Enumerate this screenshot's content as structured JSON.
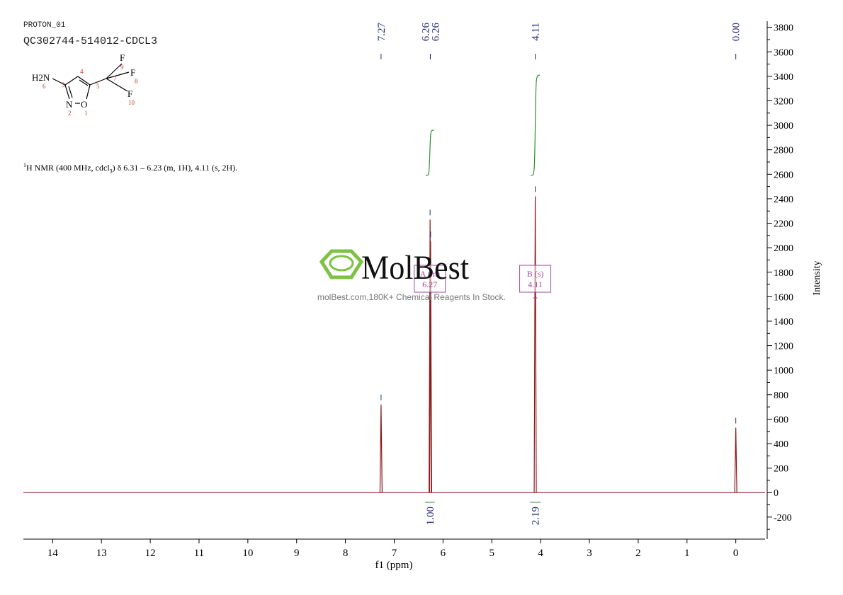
{
  "header": {
    "experiment": "PROTON_01",
    "sample": "QC302744-514012-CDCL3"
  },
  "molecule": {
    "atoms": [
      {
        "symbol": "H2N",
        "number": "6"
      },
      {
        "symbol": "",
        "number": "3"
      },
      {
        "symbol": "",
        "number": "4"
      },
      {
        "symbol": "",
        "number": "5"
      },
      {
        "symbol": "",
        "number": "7"
      },
      {
        "symbol": "N",
        "number": "2"
      },
      {
        "symbol": "O",
        "number": "1"
      },
      {
        "symbol": "F",
        "number": "9"
      },
      {
        "symbol": "F",
        "number": "8"
      },
      {
        "symbol": "F",
        "number": "10"
      }
    ]
  },
  "nmr_text": {
    "sup": "1",
    "text": "H NMR (400 MHz, cdcl",
    "sub": "3",
    "rest": ") δ 6.31 – 6.23 (m, 1H), 4.11 (s, 2H)."
  },
  "watermark": {
    "brand": "MolBest",
    "tagline": "molBest.com,180K+ Chemical Reagents In Stock."
  },
  "chart_data": {
    "type": "line",
    "title": "",
    "xlabel": "f1 (ppm)",
    "ylabel": "Intensity",
    "xlim": [
      14.6,
      -0.6
    ],
    "ylim": [
      -380,
      3850
    ],
    "x_ticks": [
      14,
      13,
      12,
      11,
      10,
      9,
      8,
      7,
      6,
      5,
      4,
      3,
      2,
      1,
      0
    ],
    "y_ticks": [
      -200,
      0,
      200,
      400,
      600,
      800,
      1000,
      1200,
      1400,
      1600,
      1800,
      2000,
      2200,
      2400,
      2600,
      2800,
      3000,
      3200,
      3400,
      3600,
      3800
    ],
    "grid": false,
    "spectrum_color": "#8b1a1a",
    "peak_label_color": "#1f2a7a",
    "integral_color": "#2f8f2f",
    "multiplet_color": "#9a4a9a",
    "series": [
      {
        "peaks": [
          {
            "ppm": 7.27,
            "height": 720
          },
          {
            "ppm": 6.265,
            "height": 2230
          },
          {
            "ppm": 6.255,
            "height": 2050
          },
          {
            "ppm": 4.11,
            "height": 2420
          },
          {
            "ppm": 0.0,
            "height": 530
          }
        ]
      }
    ],
    "peak_labels": [
      {
        "ppm": 7.27,
        "label": "7.27"
      },
      {
        "ppm": 6.26,
        "label": "6.26"
      },
      {
        "ppm": 6.26,
        "label": "6.26"
      },
      {
        "ppm": 4.11,
        "label": "4.11"
      },
      {
        "ppm": 0.0,
        "label": "0.00"
      }
    ],
    "integrals": [
      {
        "from": 6.31,
        "to": 6.23,
        "value": "1.00",
        "curve_low": 2590,
        "curve_high": 2960
      },
      {
        "from": 4.16,
        "to": 4.06,
        "value": "2.19",
        "curve_low": 2590,
        "curve_high": 3410
      }
    ],
    "multiplets": [
      {
        "id": "A",
        "type": "m",
        "shift": "6.27",
        "ppm": 6.27
      },
      {
        "id": "B",
        "type": "s",
        "shift": "4.11",
        "ppm": 4.11
      }
    ]
  }
}
